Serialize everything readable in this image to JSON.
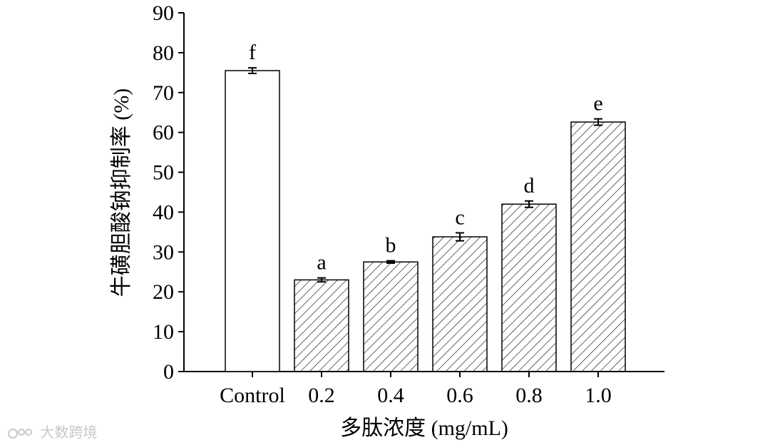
{
  "chart_data": {
    "type": "bar",
    "title": "",
    "xlabel": "多肽浓度 (mg/mL)",
    "ylabel": "牛磺胆酸钠抑制率 (%)",
    "ylim": [
      0,
      90
    ],
    "yticks": [
      0,
      10,
      20,
      30,
      40,
      50,
      60,
      70,
      80,
      90
    ],
    "categories": [
      "Control",
      "0.2",
      "0.4",
      "0.6",
      "0.8",
      "1.0"
    ],
    "values": [
      75.5,
      23.0,
      27.5,
      33.8,
      42.0,
      62.6
    ],
    "errors": [
      0.7,
      0.5,
      0.3,
      1.0,
      0.8,
      0.8
    ],
    "significance": [
      "f",
      "a",
      "b",
      "c",
      "d",
      "e"
    ],
    "bar_styles": [
      "open",
      "hatched",
      "hatched",
      "hatched",
      "hatched",
      "hatched"
    ],
    "grid": false,
    "legend": "none"
  },
  "watermark": {
    "text": "大数跨境"
  },
  "colors": {
    "bar_fill": "#ffffff",
    "stroke": "#000000",
    "hatch": "#000000",
    "watermark": "#c8c8c8"
  }
}
